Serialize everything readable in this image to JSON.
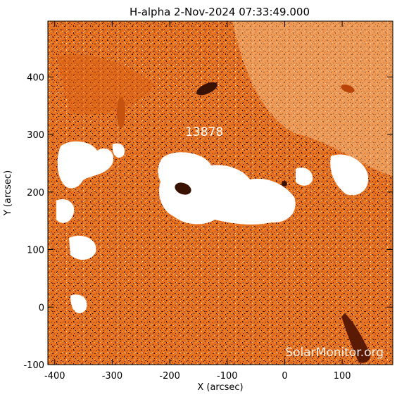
{
  "title": "H-alpha   2-Nov-2024 07:33:49.000",
  "x_axis": {
    "label": "X (arcsec)",
    "ticks": [
      {
        "value": -400,
        "text": "-400"
      },
      {
        "value": -300,
        "text": "-300"
      },
      {
        "value": -200,
        "text": "-200"
      },
      {
        "value": -100,
        "text": "-100"
      },
      {
        "value": 0,
        "text": "0"
      },
      {
        "value": 100,
        "text": "100"
      }
    ],
    "range": [
      -412,
      188
    ]
  },
  "y_axis": {
    "label": "Y (arcsec)",
    "ticks": [
      {
        "value": -100,
        "text": "-100"
      },
      {
        "value": 0,
        "text": "0"
      },
      {
        "value": 100,
        "text": "100"
      },
      {
        "value": 200,
        "text": "200"
      },
      {
        "value": 300,
        "text": "300"
      },
      {
        "value": 400,
        "text": "400"
      }
    ],
    "range": [
      -100,
      497
    ]
  },
  "region_label": {
    "text": "13878",
    "x": -140,
    "y": 305
  },
  "watermark": "SolarMonitor.org",
  "colors": {
    "background": "#e8711d",
    "mid": "#f5a35c",
    "plage": "#ffffff",
    "dark": "#3a1204",
    "axes": "#000000"
  }
}
